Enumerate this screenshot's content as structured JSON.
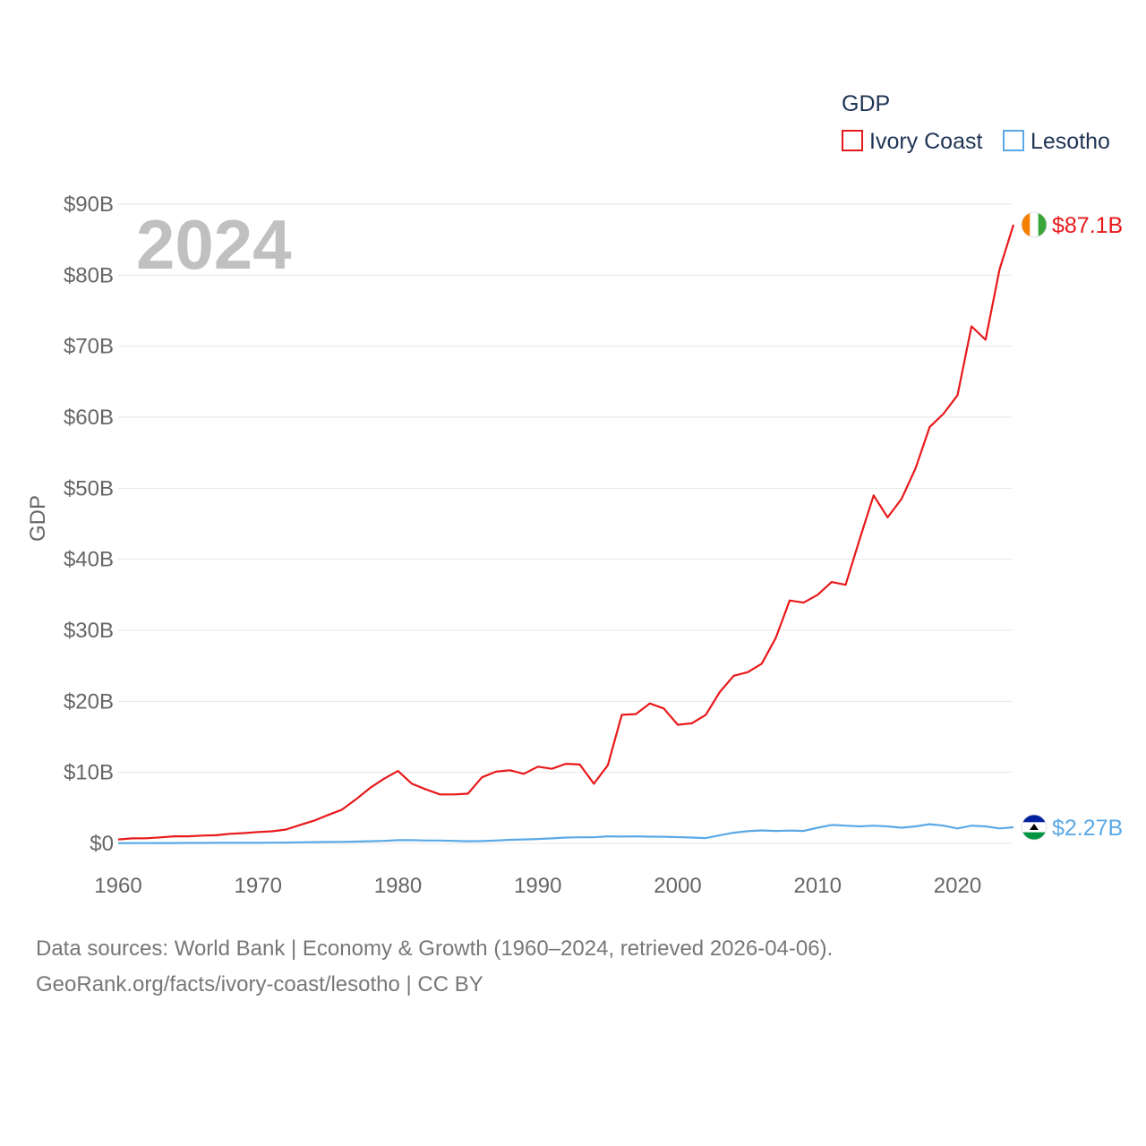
{
  "chart_data": {
    "type": "line",
    "title": "2024",
    "ylabel": "GDP",
    "xlabel": "",
    "xlim": [
      1960,
      2024
    ],
    "ylim": [
      0,
      90
    ],
    "y_unit": "billion USD",
    "x_ticks": [
      1960,
      1970,
      1980,
      1990,
      2000,
      2010,
      2020
    ],
    "y_ticks": [
      {
        "value": 0,
        "label": "$0"
      },
      {
        "value": 10,
        "label": "$10B"
      },
      {
        "value": 20,
        "label": "$20B"
      },
      {
        "value": 30,
        "label": "$30B"
      },
      {
        "value": 40,
        "label": "$40B"
      },
      {
        "value": 50,
        "label": "$50B"
      },
      {
        "value": 60,
        "label": "$60B"
      },
      {
        "value": 70,
        "label": "$70B"
      },
      {
        "value": 80,
        "label": "$80B"
      },
      {
        "value": 90,
        "label": "$90B"
      }
    ],
    "legend": {
      "title": "GDP",
      "placement": "top-right"
    },
    "x": [
      1960,
      1961,
      1962,
      1963,
      1964,
      1965,
      1966,
      1967,
      1968,
      1969,
      1970,
      1971,
      1972,
      1973,
      1974,
      1975,
      1976,
      1977,
      1978,
      1979,
      1980,
      1981,
      1982,
      1983,
      1984,
      1985,
      1986,
      1987,
      1988,
      1989,
      1990,
      1991,
      1992,
      1993,
      1994,
      1995,
      1996,
      1997,
      1998,
      1999,
      2000,
      2001,
      2002,
      2003,
      2004,
      2005,
      2006,
      2007,
      2008,
      2009,
      2010,
      2011,
      2012,
      2013,
      2014,
      2015,
      2016,
      2017,
      2018,
      2019,
      2020,
      2021,
      2022,
      2023,
      2024
    ],
    "series": [
      {
        "name": "Ivory Coast",
        "color": "#e8191b",
        "end_label": "$87.1B",
        "flag": "ivory-coast-flag",
        "values": [
          0.55,
          0.7,
          0.72,
          0.85,
          1.0,
          1.0,
          1.1,
          1.15,
          1.35,
          1.45,
          1.6,
          1.7,
          1.95,
          2.6,
          3.2,
          4.0,
          4.75,
          6.2,
          7.8,
          9.1,
          10.2,
          8.4,
          7.6,
          6.9,
          6.9,
          7.0,
          9.3,
          10.1,
          10.3,
          9.8,
          10.8,
          10.5,
          11.2,
          11.1,
          8.4,
          11.0,
          18.1,
          18.2,
          19.7,
          19.0,
          16.7,
          16.9,
          18.1,
          21.3,
          23.6,
          24.1,
          25.3,
          28.9,
          34.2,
          33.9,
          35.0,
          36.8,
          36.4,
          42.8,
          49.0,
          45.9,
          48.5,
          52.8,
          58.6,
          60.5,
          63.1,
          72.8,
          70.9,
          80.8,
          87.1
        ]
      },
      {
        "name": "Lesotho",
        "color": "#5aa9e6",
        "end_label": "$2.27B",
        "flag": "lesotho-flag",
        "values": [
          0.03,
          0.04,
          0.04,
          0.05,
          0.05,
          0.06,
          0.06,
          0.07,
          0.07,
          0.08,
          0.08,
          0.1,
          0.11,
          0.15,
          0.18,
          0.2,
          0.21,
          0.25,
          0.3,
          0.35,
          0.45,
          0.45,
          0.4,
          0.4,
          0.35,
          0.3,
          0.33,
          0.4,
          0.5,
          0.55,
          0.62,
          0.7,
          0.82,
          0.86,
          0.86,
          1.0,
          0.96,
          1.0,
          0.94,
          0.93,
          0.88,
          0.82,
          0.74,
          1.15,
          1.5,
          1.72,
          1.83,
          1.75,
          1.8,
          1.75,
          2.2,
          2.6,
          2.5,
          2.4,
          2.5,
          2.4,
          2.2,
          2.4,
          2.7,
          2.5,
          2.1,
          2.5,
          2.4,
          2.1,
          2.27
        ]
      }
    ]
  },
  "footer": {
    "line1": "Data sources: World Bank | Economy & Growth (1960–2024, retrieved 2026-04-06).",
    "line2": "GeoRank.org/facts/ivory-coast/lesotho | CC BY"
  }
}
